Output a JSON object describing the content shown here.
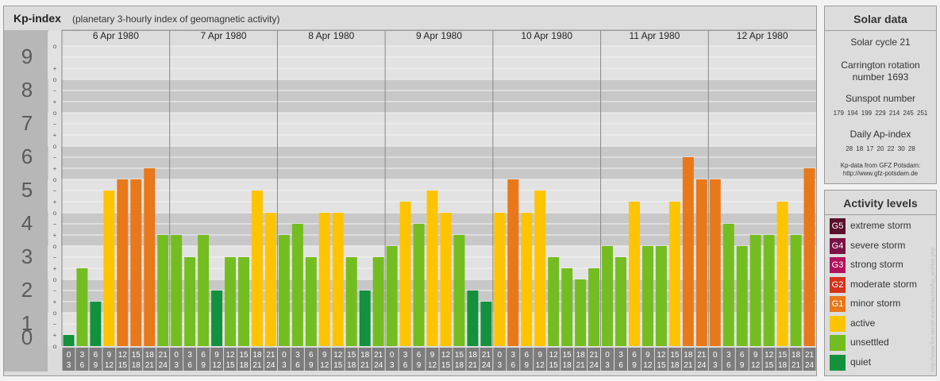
{
  "header": {
    "title": "Kp-index",
    "subtitle": "(planetary 3-hourly index of geomagnetic activity)"
  },
  "chart_data": {
    "type": "bar",
    "days": [
      "6 Apr 1980",
      "7 Apr 1980",
      "8 Apr 1980",
      "9 Apr 1980",
      "10 Apr 1980",
      "11 Apr 1980",
      "12 Apr 1980"
    ],
    "interval_start_hours": [
      "0",
      "3",
      "6",
      "9",
      "12",
      "15",
      "18",
      "21"
    ],
    "interval_end_hours": [
      "3",
      "6",
      "9",
      "12",
      "15",
      "18",
      "21",
      "24"
    ],
    "sublevel_labels": [
      "+",
      "o",
      "−"
    ],
    "ylim": [
      0,
      9
    ],
    "y_ticks": [
      "0",
      "1",
      "2",
      "3",
      "4",
      "5",
      "6",
      "7",
      "8",
      "9"
    ],
    "values": [
      0.333,
      2.333,
      1.333,
      4.667,
      5.0,
      5.0,
      5.333,
      3.333,
      3.333,
      2.667,
      3.333,
      1.667,
      2.667,
      2.667,
      4.667,
      4.0,
      3.333,
      3.667,
      2.667,
      4.0,
      4.0,
      2.667,
      1.667,
      2.667,
      3.0,
      4.333,
      3.667,
      4.667,
      4.0,
      3.333,
      1.667,
      1.333,
      4.0,
      5.0,
      4.0,
      4.667,
      2.667,
      2.333,
      2.0,
      2.333,
      3.0,
      2.667,
      4.333,
      3.0,
      3.0,
      4.333,
      5.667,
      5.0,
      5.0,
      3.667,
      3.0,
      3.333,
      3.333,
      4.333,
      3.333,
      5.333
    ],
    "grid": true
  },
  "colors": {
    "quiet": "#13913d",
    "unsettled": "#74bd20",
    "active": "#ffc400",
    "G1": "#e8781a",
    "G2": "#d2341c",
    "G3": "#b0125c",
    "G4": "#7a1246",
    "G5": "#5a0f2a",
    "band_dark": "#c8c8c8",
    "band_light": "#e2e2e2",
    "axis_gray": "#b7b7b7",
    "xlabel_box": "#7c7c7c"
  },
  "solar": {
    "title": "Solar data",
    "cycle": "Solar cycle 21",
    "carrington_line1": "Carrington rotation",
    "carrington_line2": "number 1693",
    "sunspot_title": "Sunspot number",
    "sunspot_values": "179 194 199 229 214 245 251",
    "ap_title": "Daily Ap-index",
    "ap_values": "28 18 17 20 22 30 28",
    "source_line1": "Kp-data from GFZ Potsdam:",
    "source_line2": "http://www.gfz-potsdam.de"
  },
  "activity": {
    "title": "Activity levels",
    "levels": [
      {
        "badge": "G5",
        "label": "extreme storm",
        "color": "#5a0f2a"
      },
      {
        "badge": "G4",
        "label": "severe storm",
        "color": "#7a1246"
      },
      {
        "badge": "G3",
        "label": "strong storm",
        "color": "#b0125c"
      },
      {
        "badge": "G2",
        "label": "moderate storm",
        "color": "#d2341c"
      },
      {
        "badge": "G1",
        "label": "minor storm",
        "color": "#e8781a"
      },
      {
        "badge": "",
        "label": "active",
        "color": "#ffc400"
      },
      {
        "badge": "",
        "label": "unsettled",
        "color": "#74bd20"
      },
      {
        "badge": "",
        "label": "quiet",
        "color": "#13913d"
      }
    ]
  },
  "credit": "http://www.fire-server.eu/de/aurora/kp_archive.php"
}
